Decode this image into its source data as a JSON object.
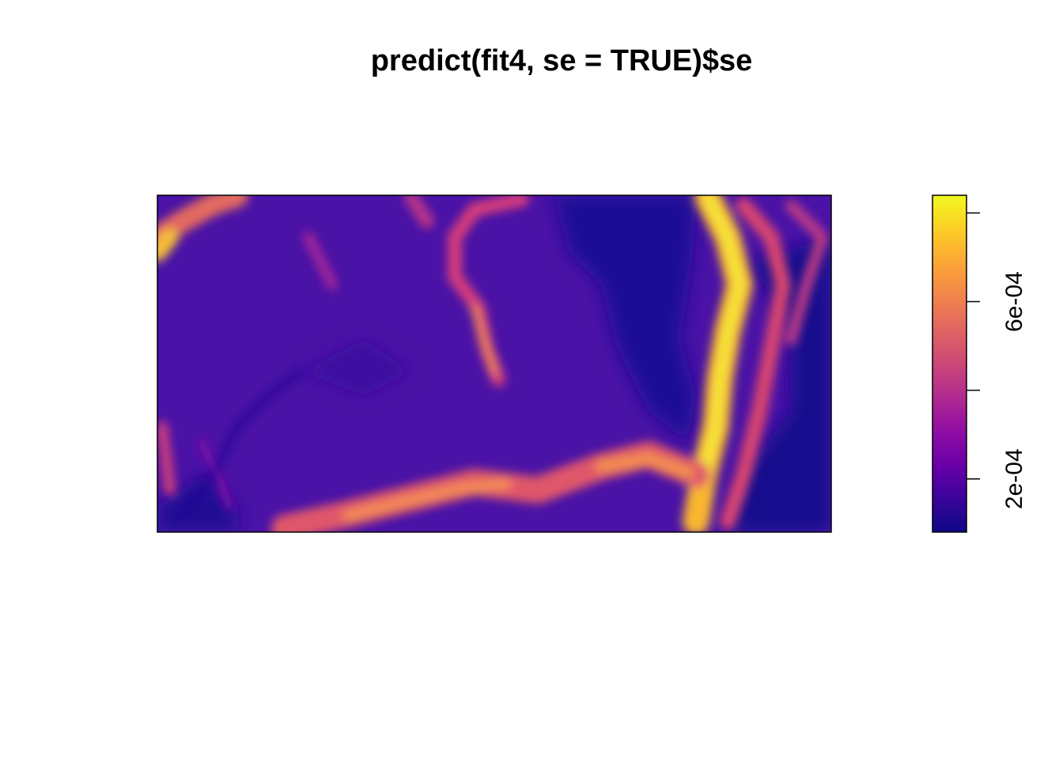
{
  "chart_data": {
    "type": "heatmap",
    "title": "predict(fit4, se = TRUE)$se",
    "xlabel": "",
    "ylabel": "",
    "axes_shown": false,
    "legend": {
      "position": "right",
      "type": "colorbar",
      "palette": [
        "#0D0887",
        "#3A049A",
        "#6A00A8",
        "#900DA4",
        "#B12A90",
        "#CC4778",
        "#E16462",
        "#F2844B",
        "#FCA636",
        "#FCCE25",
        "#F0F921"
      ],
      "range": [
        8e-05,
        0.00084
      ],
      "ticks": [
        0.0002,
        0.0004,
        0.0006,
        0.0008
      ],
      "tick_labels": [
        "2e-04",
        "",
        "6e-04",
        ""
      ]
    },
    "colorscale": "plasma",
    "z_description_note": ""
  }
}
